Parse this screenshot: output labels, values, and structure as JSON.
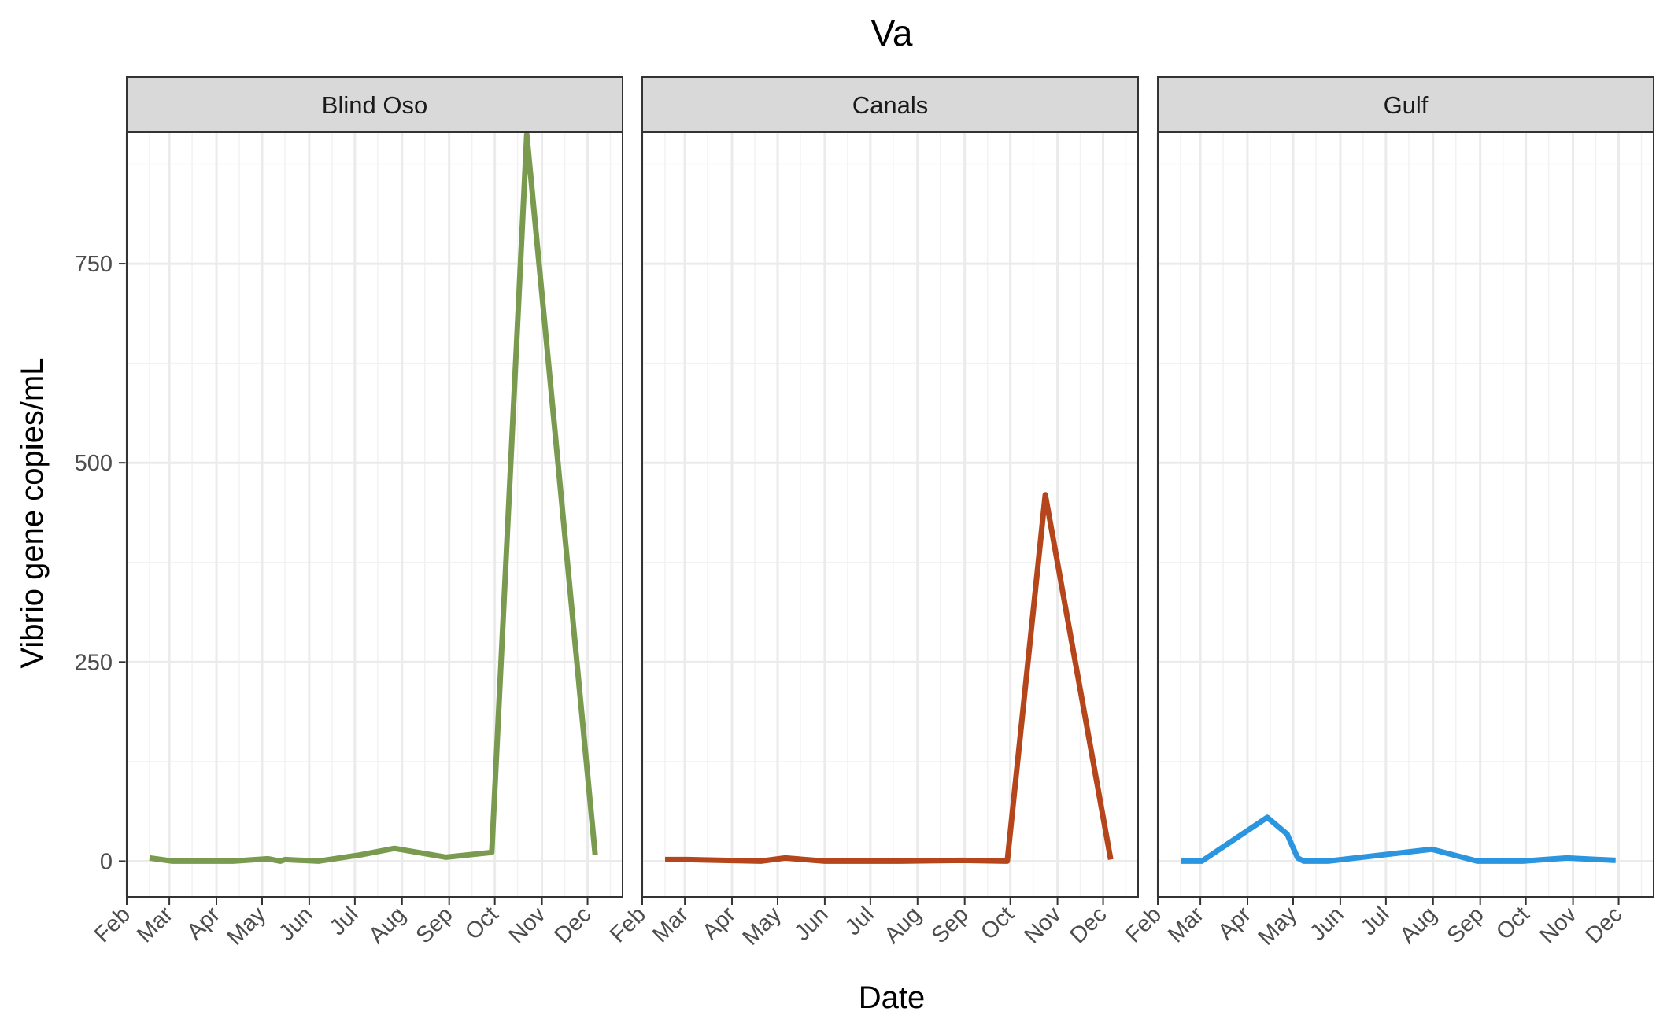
{
  "chart_data": {
    "type": "line",
    "title": "Va",
    "xlabel": "Date",
    "ylabel": "Vibrio gene copies/mL",
    "ylim": [
      -45,
      915
    ],
    "yticks": [
      0,
      250,
      500,
      750
    ],
    "xticks": [
      "Feb",
      "Mar",
      "Apr",
      "May",
      "Jun",
      "Jul",
      "Aug",
      "Sep",
      "Oct",
      "Nov",
      "Dec"
    ],
    "grid": true,
    "facets": [
      {
        "name": "Blind Oso",
        "color": "#7a9a4f",
        "points": [
          [
            "2021-02-16",
            4
          ],
          [
            "2021-03-03",
            0
          ],
          [
            "2021-03-15",
            0
          ],
          [
            "2021-04-12",
            0
          ],
          [
            "2021-05-05",
            3
          ],
          [
            "2021-05-13",
            0
          ],
          [
            "2021-05-16",
            2
          ],
          [
            "2021-06-07",
            0
          ],
          [
            "2021-07-05",
            8
          ],
          [
            "2021-07-27",
            16
          ],
          [
            "2021-08-30",
            5
          ],
          [
            "2021-09-29",
            11
          ],
          [
            "2021-10-22",
            912
          ],
          [
            "2021-12-06",
            8
          ]
        ]
      },
      {
        "name": "Canals",
        "color": "#b5461c",
        "points": [
          [
            "2021-02-16",
            2
          ],
          [
            "2021-03-03",
            2
          ],
          [
            "2021-04-20",
            0
          ],
          [
            "2021-05-06",
            4
          ],
          [
            "2021-06-01",
            0
          ],
          [
            "2021-07-20",
            0
          ],
          [
            "2021-08-30",
            1
          ],
          [
            "2021-09-29",
            0
          ],
          [
            "2021-10-24",
            460
          ],
          [
            "2021-12-06",
            2
          ]
        ]
      },
      {
        "name": "Gulf",
        "color": "#2b95e0",
        "points": [
          [
            "2021-02-16",
            0
          ],
          [
            "2021-03-02",
            0
          ],
          [
            "2021-04-14",
            55
          ],
          [
            "2021-04-27",
            34
          ],
          [
            "2021-05-04",
            4
          ],
          [
            "2021-05-08",
            0
          ],
          [
            "2021-05-24",
            0
          ],
          [
            "2021-07-31",
            15
          ],
          [
            "2021-08-30",
            0
          ],
          [
            "2021-09-29",
            0
          ],
          [
            "2021-10-28",
            4
          ],
          [
            "2021-11-29",
            1
          ]
        ]
      }
    ]
  }
}
